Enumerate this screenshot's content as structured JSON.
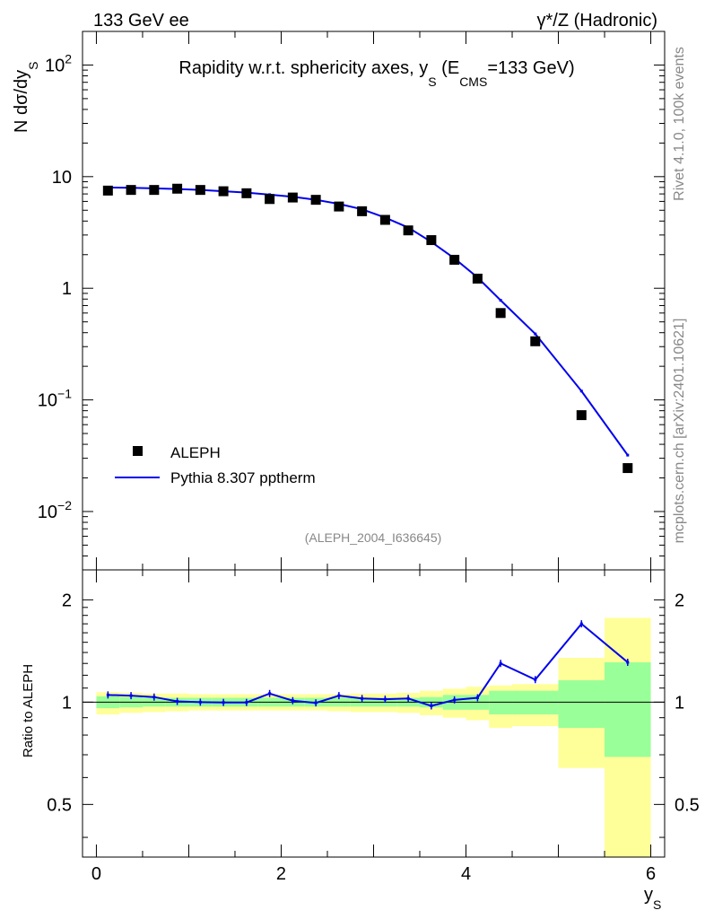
{
  "header": {
    "left": "133 GeV ee",
    "right": "γ*/Z (Hadronic)"
  },
  "side_text": {
    "rivet": "Rivet 4.1.0,  100k events",
    "mcplots": "mcplots.cern.ch [arXiv:2401.10621]"
  },
  "chart_data": [
    {
      "type": "scatter",
      "title": "Rapidity w.r.t. sphericity axes, y_S (E_CMS=133 GeV)",
      "title_parts": {
        "a": "Rapidity w.r.t. sphericity axes, y",
        "sub1": "S",
        "b": " (E",
        "sub2": "CMS",
        "c": "=133 GeV)"
      },
      "ylabel": {
        "main": "N  dσ/dy",
        "sub": "S"
      },
      "yscale": "log",
      "ylim": [
        0.003,
        200
      ],
      "xlim": [
        -0.15,
        6.15
      ],
      "yticks": [
        {
          "v": 100,
          "base": "10",
          "exp": "2"
        },
        {
          "v": 10,
          "base": "10",
          "exp": ""
        },
        {
          "v": 1,
          "base": "1",
          "exp": ""
        },
        {
          "v": 0.1,
          "base": "10",
          "exp": "−1"
        },
        {
          "v": 0.01,
          "base": "10",
          "exp": "−2"
        }
      ],
      "watermark": "(ALEPH_2004_I636645)",
      "legend": {
        "position": "bottom-left",
        "entries": [
          "ALEPH",
          "Pythia 8.307 pptherm"
        ]
      },
      "series": [
        {
          "name": "ALEPH",
          "style": "markers",
          "color": "#000000",
          "x": [
            0.125,
            0.375,
            0.625,
            0.875,
            1.125,
            1.375,
            1.625,
            1.875,
            2.125,
            2.375,
            2.625,
            2.875,
            3.125,
            3.375,
            3.625,
            3.875,
            4.125,
            4.375,
            4.75,
            5.25,
            5.75
          ],
          "y": [
            7.5,
            7.6,
            7.6,
            7.8,
            7.6,
            7.4,
            7.1,
            6.3,
            6.5,
            6.2,
            5.4,
            4.9,
            4.1,
            3.3,
            2.7,
            1.8,
            1.22,
            0.6,
            0.335,
            0.073,
            0.0245
          ]
        },
        {
          "name": "Pythia 8.307 pptherm",
          "style": "line",
          "color": "#0000ee",
          "x": [
            0.125,
            0.375,
            0.625,
            0.875,
            1.125,
            1.375,
            1.625,
            1.875,
            2.125,
            2.375,
            2.625,
            2.875,
            3.125,
            3.375,
            3.625,
            3.875,
            4.125,
            4.375,
            4.75,
            5.25,
            5.75
          ],
          "y": [
            8.0,
            7.95,
            7.85,
            7.75,
            7.6,
            7.4,
            7.2,
            6.9,
            6.6,
            6.2,
            5.7,
            5.1,
            4.3,
            3.5,
            2.6,
            1.85,
            1.25,
            0.78,
            0.39,
            0.12,
            0.032
          ]
        }
      ]
    },
    {
      "type": "line",
      "ylabel": "Ratio to ALEPH",
      "xlabel": {
        "main": "y",
        "sub": "S"
      },
      "yscale": "log",
      "ylim": [
        0.35,
        2.45
      ],
      "xlim": [
        -0.15,
        6.15
      ],
      "yticks": [
        0.5,
        1,
        2
      ],
      "ytick_labels": [
        "0.5",
        "1",
        "2"
      ],
      "xticks": [
        0,
        2,
        4,
        6
      ],
      "xtick_labels": [
        "0",
        "2",
        "4",
        "6"
      ],
      "reference_line": 1,
      "bands": {
        "edges": [
          0,
          0.25,
          0.5,
          0.75,
          1.0,
          1.25,
          1.5,
          1.75,
          2.0,
          2.25,
          2.5,
          2.75,
          3.0,
          3.25,
          3.5,
          3.75,
          4.0,
          4.25,
          4.5,
          5.0,
          5.5,
          6.0
        ],
        "green_halfwidth": [
          0.04,
          0.035,
          0.03,
          0.03,
          0.03,
          0.03,
          0.03,
          0.03,
          0.03,
          0.03,
          0.03,
          0.03,
          0.03,
          0.03,
          0.035,
          0.05,
          0.05,
          0.08,
          0.08,
          0.16,
          0.31
        ],
        "yellow_lo": [
          0.92,
          0.93,
          0.935,
          0.94,
          0.945,
          0.945,
          0.945,
          0.945,
          0.945,
          0.945,
          0.94,
          0.935,
          0.935,
          0.93,
          0.915,
          0.9,
          0.885,
          0.84,
          0.85,
          0.64,
          0.35
        ],
        "yellow_hi": [
          1.07,
          1.065,
          1.06,
          1.06,
          1.055,
          1.055,
          1.055,
          1.055,
          1.055,
          1.055,
          1.055,
          1.06,
          1.06,
          1.065,
          1.08,
          1.095,
          1.11,
          1.12,
          1.13,
          1.35,
          1.77
        ],
        "green_color": "#99ff99",
        "yellow_color": "#ffff99"
      },
      "series": [
        {
          "name": "Pythia 8.307 pptherm",
          "color": "#0000ee",
          "x": [
            0.125,
            0.375,
            0.625,
            0.875,
            1.125,
            1.375,
            1.625,
            1.875,
            2.125,
            2.375,
            2.625,
            2.875,
            3.125,
            3.375,
            3.625,
            3.875,
            4.125,
            4.375,
            4.75,
            5.25,
            5.75
          ],
          "y": [
            1.05,
            1.045,
            1.035,
            1.005,
            1.0,
            0.998,
            0.998,
            1.06,
            1.01,
            0.995,
            1.045,
            1.025,
            1.02,
            1.025,
            0.975,
            1.015,
            1.03,
            1.3,
            1.165,
            1.7,
            1.31
          ]
        }
      ]
    }
  ]
}
